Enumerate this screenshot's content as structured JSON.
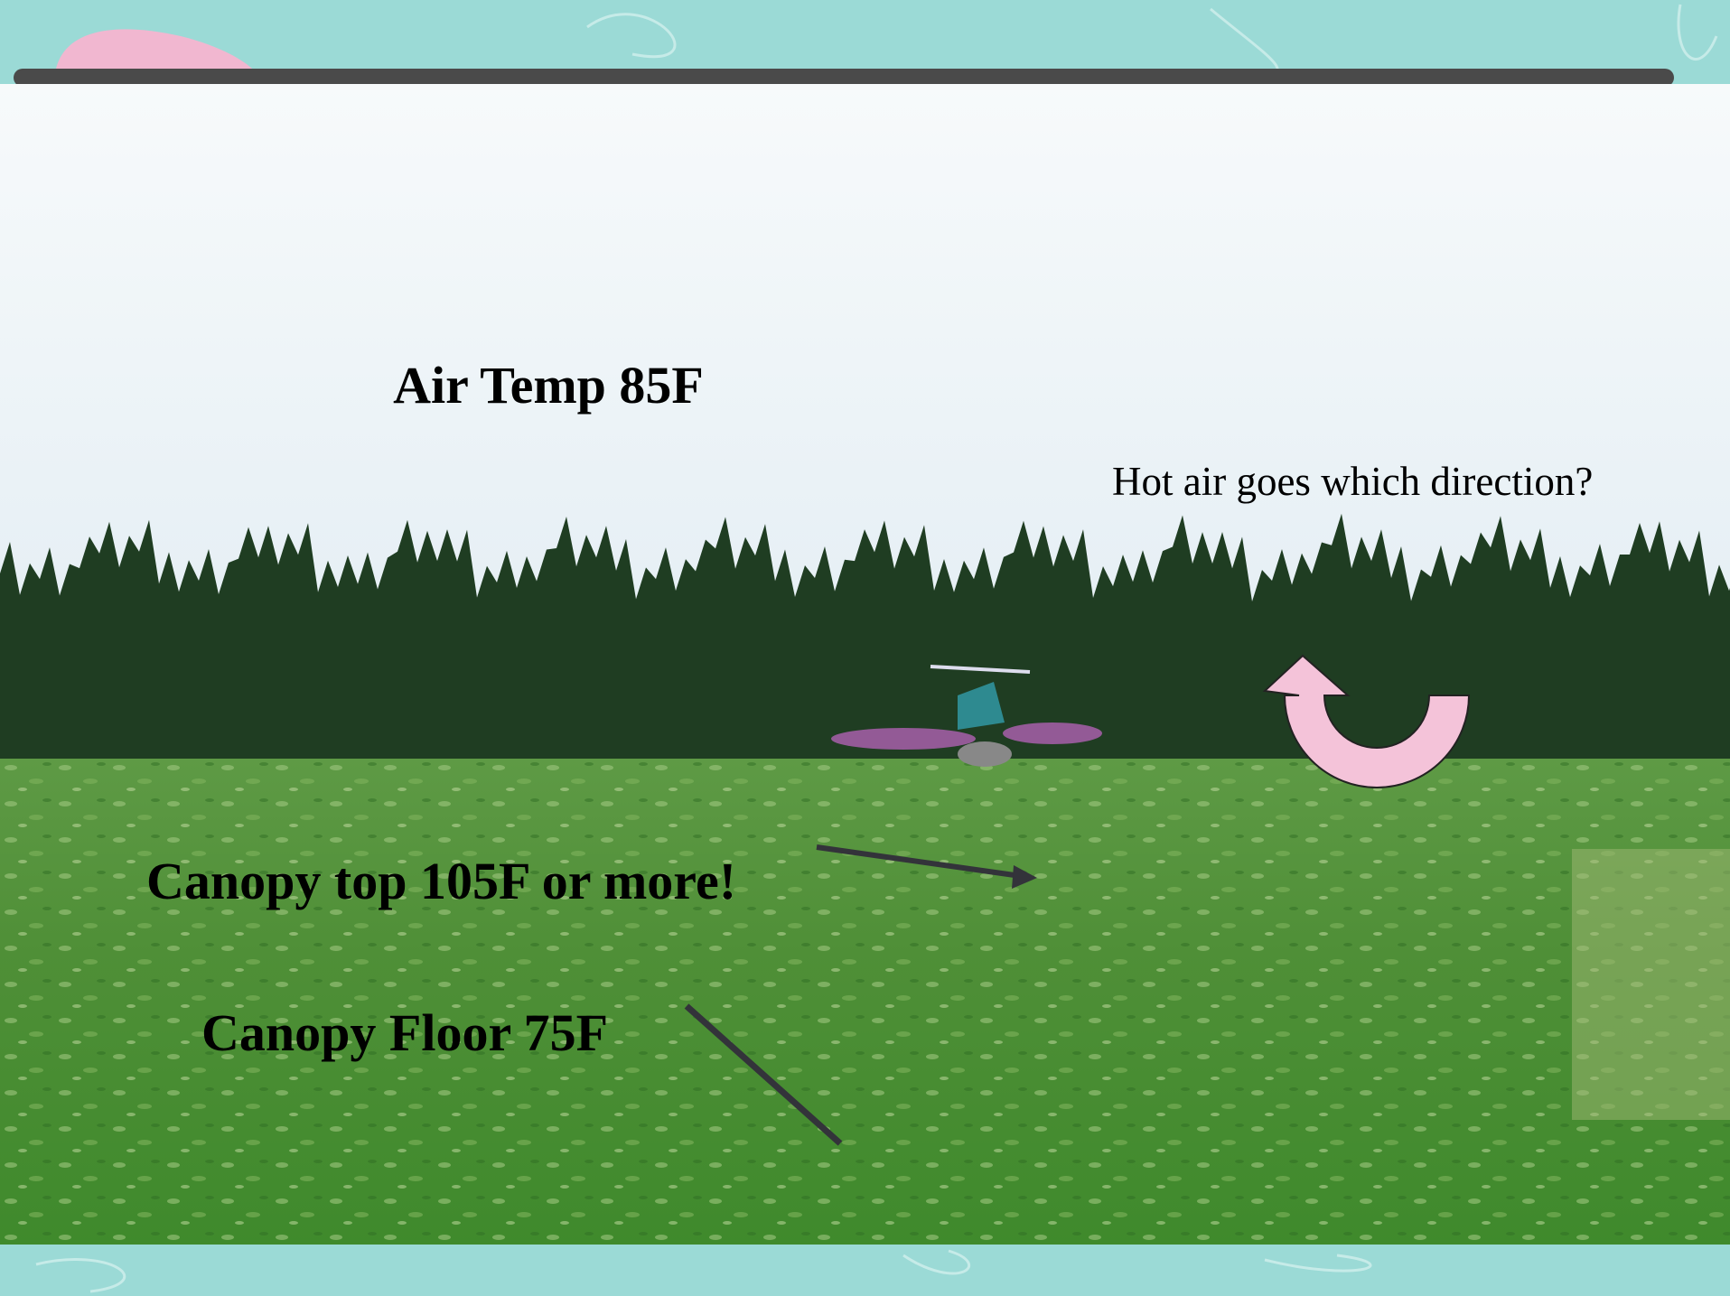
{
  "slide": {
    "labels": {
      "air_temp": "Air Temp 85F",
      "question": "Hot air goes which direction?",
      "canopy_top": "Canopy top 105F or more!",
      "canopy_floor": "Canopy Floor 75F"
    }
  }
}
